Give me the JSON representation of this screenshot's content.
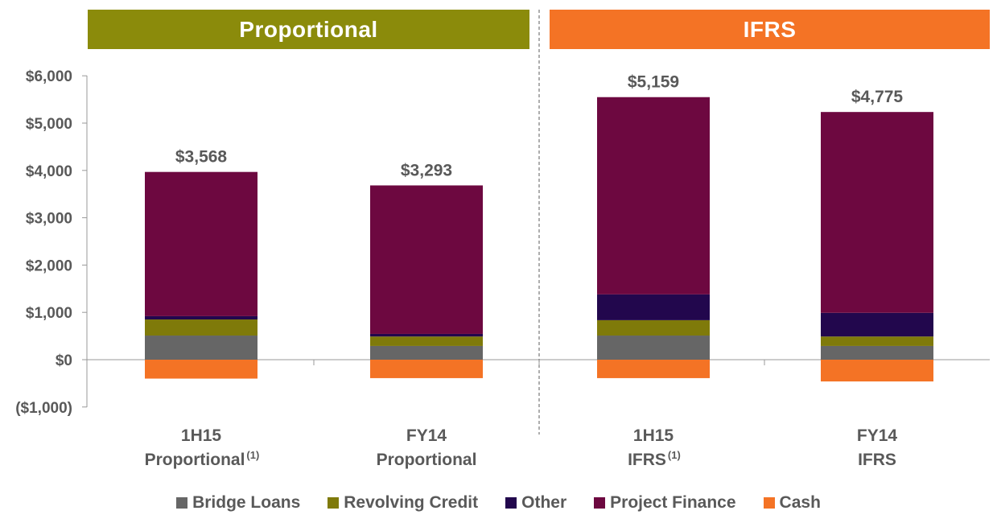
{
  "headers": {
    "left": {
      "label": "Proportional",
      "color": "#8b8b0b"
    },
    "right": {
      "label": "IFRS",
      "color": "#f47325"
    }
  },
  "chart_data": {
    "type": "bar",
    "stacked": true,
    "ylim": [
      -1000,
      6000
    ],
    "yticks": [
      6000,
      5000,
      4000,
      3000,
      2000,
      1000,
      0,
      -1000
    ],
    "ytick_labels": [
      "$6,000",
      "$5,000",
      "$4,000",
      "$3,000",
      "$2,000",
      "$1,000",
      "$0",
      "($1,000)"
    ],
    "categories": [
      {
        "line1": "1H15",
        "line2": "Proportional",
        "sup": "(1)"
      },
      {
        "line1": "FY14",
        "line2": "Proportional",
        "sup": ""
      },
      {
        "line1": "1H15",
        "line2": "IFRS",
        "sup": "(1)"
      },
      {
        "line1": "FY14",
        "line2": "IFRS",
        "sup": ""
      }
    ],
    "totals": [
      "$3,568",
      "$3,293",
      "$5,159",
      "$4,775"
    ],
    "series": [
      {
        "name": "Bridge Loans",
        "color": "#666666",
        "values": [
          510,
          290,
          510,
          290
        ]
      },
      {
        "name": "Revolving Credit",
        "color": "#7f7a0a",
        "values": [
          340,
          200,
          325,
          200
        ]
      },
      {
        "name": "Other",
        "color": "#22074d",
        "values": [
          70,
          55,
          545,
          500
        ]
      },
      {
        "name": "Project Finance",
        "color": "#6d0840",
        "values": [
          3048,
          3138,
          4169,
          4245
        ]
      },
      {
        "name": "Cash",
        "color": "#f47325",
        "values": [
          -400,
          -390,
          -390,
          -460
        ]
      }
    ],
    "grid": false,
    "legend": "bottom"
  }
}
